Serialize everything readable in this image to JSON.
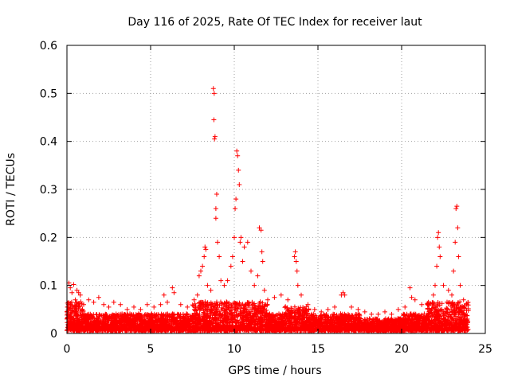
{
  "chart_data": {
    "type": "scatter",
    "title": "Day 116 of 2025, Rate Of TEC Index for receiver laut",
    "xlabel": "GPS time / hours",
    "ylabel": "ROTI / TECUs",
    "xlim": [
      0,
      25
    ],
    "ylim": [
      0,
      0.6
    ],
    "xticks": [
      0,
      5,
      10,
      15,
      20,
      25
    ],
    "yticks": [
      0,
      0.1,
      0.2,
      0.3,
      0.4,
      0.5,
      0.6
    ],
    "xtick_labels": [
      "0",
      "5",
      "10",
      "15",
      "20",
      "25"
    ],
    "ytick_labels": [
      "0",
      "0.1",
      "0.2",
      "0.3",
      "0.4",
      "0.5",
      "0.6"
    ],
    "grid": true,
    "marker": "+",
    "color": "#ff0000",
    "x_range_of_data": [
      0,
      24
    ],
    "points": [
      [
        0.03,
        0.055
      ],
      [
        0.08,
        0.06
      ],
      [
        0.12,
        0.105
      ],
      [
        0.2,
        0.095
      ],
      [
        0.3,
        0.085
      ],
      [
        0.4,
        0.102
      ],
      [
        0.5,
        0.07
      ],
      [
        0.6,
        0.09
      ],
      [
        0.7,
        0.085
      ],
      [
        0.8,
        0.08
      ],
      [
        1.0,
        0.06
      ],
      [
        1.3,
        0.07
      ],
      [
        1.6,
        0.065
      ],
      [
        1.9,
        0.075
      ],
      [
        2.2,
        0.06
      ],
      [
        2.5,
        0.055
      ],
      [
        2.8,
        0.065
      ],
      [
        3.2,
        0.06
      ],
      [
        3.6,
        0.05
      ],
      [
        4.0,
        0.055
      ],
      [
        4.4,
        0.05
      ],
      [
        4.8,
        0.06
      ],
      [
        5.2,
        0.055
      ],
      [
        5.6,
        0.06
      ],
      [
        5.8,
        0.08
      ],
      [
        6.0,
        0.065
      ],
      [
        6.3,
        0.095
      ],
      [
        6.4,
        0.085
      ],
      [
        6.8,
        0.06
      ],
      [
        7.2,
        0.055
      ],
      [
        7.6,
        0.07
      ],
      [
        7.8,
        0.08
      ],
      [
        7.9,
        0.12
      ],
      [
        8.0,
        0.13
      ],
      [
        8.1,
        0.14
      ],
      [
        8.2,
        0.16
      ],
      [
        8.25,
        0.18
      ],
      [
        8.3,
        0.175
      ],
      [
        8.4,
        0.1
      ],
      [
        8.6,
        0.09
      ],
      [
        8.75,
        0.51
      ],
      [
        8.8,
        0.5
      ],
      [
        8.78,
        0.445
      ],
      [
        8.82,
        0.405
      ],
      [
        8.85,
        0.41
      ],
      [
        8.9,
        0.24
      ],
      [
        8.95,
        0.29
      ],
      [
        8.9,
        0.26
      ],
      [
        9.0,
        0.19
      ],
      [
        9.1,
        0.16
      ],
      [
        9.2,
        0.11
      ],
      [
        9.4,
        0.1
      ],
      [
        9.6,
        0.11
      ],
      [
        9.8,
        0.14
      ],
      [
        9.9,
        0.16
      ],
      [
        10.0,
        0.2
      ],
      [
        10.05,
        0.26
      ],
      [
        10.1,
        0.28
      ],
      [
        10.15,
        0.38
      ],
      [
        10.2,
        0.37
      ],
      [
        10.25,
        0.34
      ],
      [
        10.3,
        0.31
      ],
      [
        10.35,
        0.19
      ],
      [
        10.4,
        0.2
      ],
      [
        10.5,
        0.15
      ],
      [
        10.6,
        0.18
      ],
      [
        10.8,
        0.19
      ],
      [
        11.0,
        0.13
      ],
      [
        11.2,
        0.1
      ],
      [
        11.4,
        0.12
      ],
      [
        11.5,
        0.22
      ],
      [
        11.6,
        0.215
      ],
      [
        11.65,
        0.17
      ],
      [
        11.7,
        0.15
      ],
      [
        11.8,
        0.09
      ],
      [
        12.0,
        0.07
      ],
      [
        12.4,
        0.075
      ],
      [
        12.8,
        0.08
      ],
      [
        13.2,
        0.07
      ],
      [
        13.6,
        0.16
      ],
      [
        13.65,
        0.17
      ],
      [
        13.7,
        0.15
      ],
      [
        13.75,
        0.13
      ],
      [
        13.8,
        0.1
      ],
      [
        14.0,
        0.08
      ],
      [
        14.4,
        0.06
      ],
      [
        14.8,
        0.05
      ],
      [
        15.2,
        0.045
      ],
      [
        15.6,
        0.05
      ],
      [
        16.0,
        0.055
      ],
      [
        16.4,
        0.08
      ],
      [
        16.5,
        0.085
      ],
      [
        16.6,
        0.08
      ],
      [
        17.0,
        0.055
      ],
      [
        17.4,
        0.05
      ],
      [
        17.8,
        0.045
      ],
      [
        18.2,
        0.04
      ],
      [
        18.6,
        0.04
      ],
      [
        19.0,
        0.045
      ],
      [
        19.4,
        0.04
      ],
      [
        19.8,
        0.05
      ],
      [
        20.2,
        0.055
      ],
      [
        20.5,
        0.095
      ],
      [
        20.6,
        0.075
      ],
      [
        20.8,
        0.07
      ],
      [
        21.2,
        0.06
      ],
      [
        21.6,
        0.065
      ],
      [
        21.9,
        0.08
      ],
      [
        22.0,
        0.1
      ],
      [
        22.1,
        0.14
      ],
      [
        22.15,
        0.2
      ],
      [
        22.2,
        0.21
      ],
      [
        22.25,
        0.18
      ],
      [
        22.3,
        0.16
      ],
      [
        22.5,
        0.1
      ],
      [
        22.8,
        0.09
      ],
      [
        23.0,
        0.08
      ],
      [
        23.1,
        0.13
      ],
      [
        23.2,
        0.19
      ],
      [
        23.25,
        0.26
      ],
      [
        23.3,
        0.265
      ],
      [
        23.35,
        0.22
      ],
      [
        23.4,
        0.16
      ],
      [
        23.5,
        0.1
      ],
      [
        23.7,
        0.07
      ],
      [
        23.9,
        0.06
      ]
    ]
  }
}
